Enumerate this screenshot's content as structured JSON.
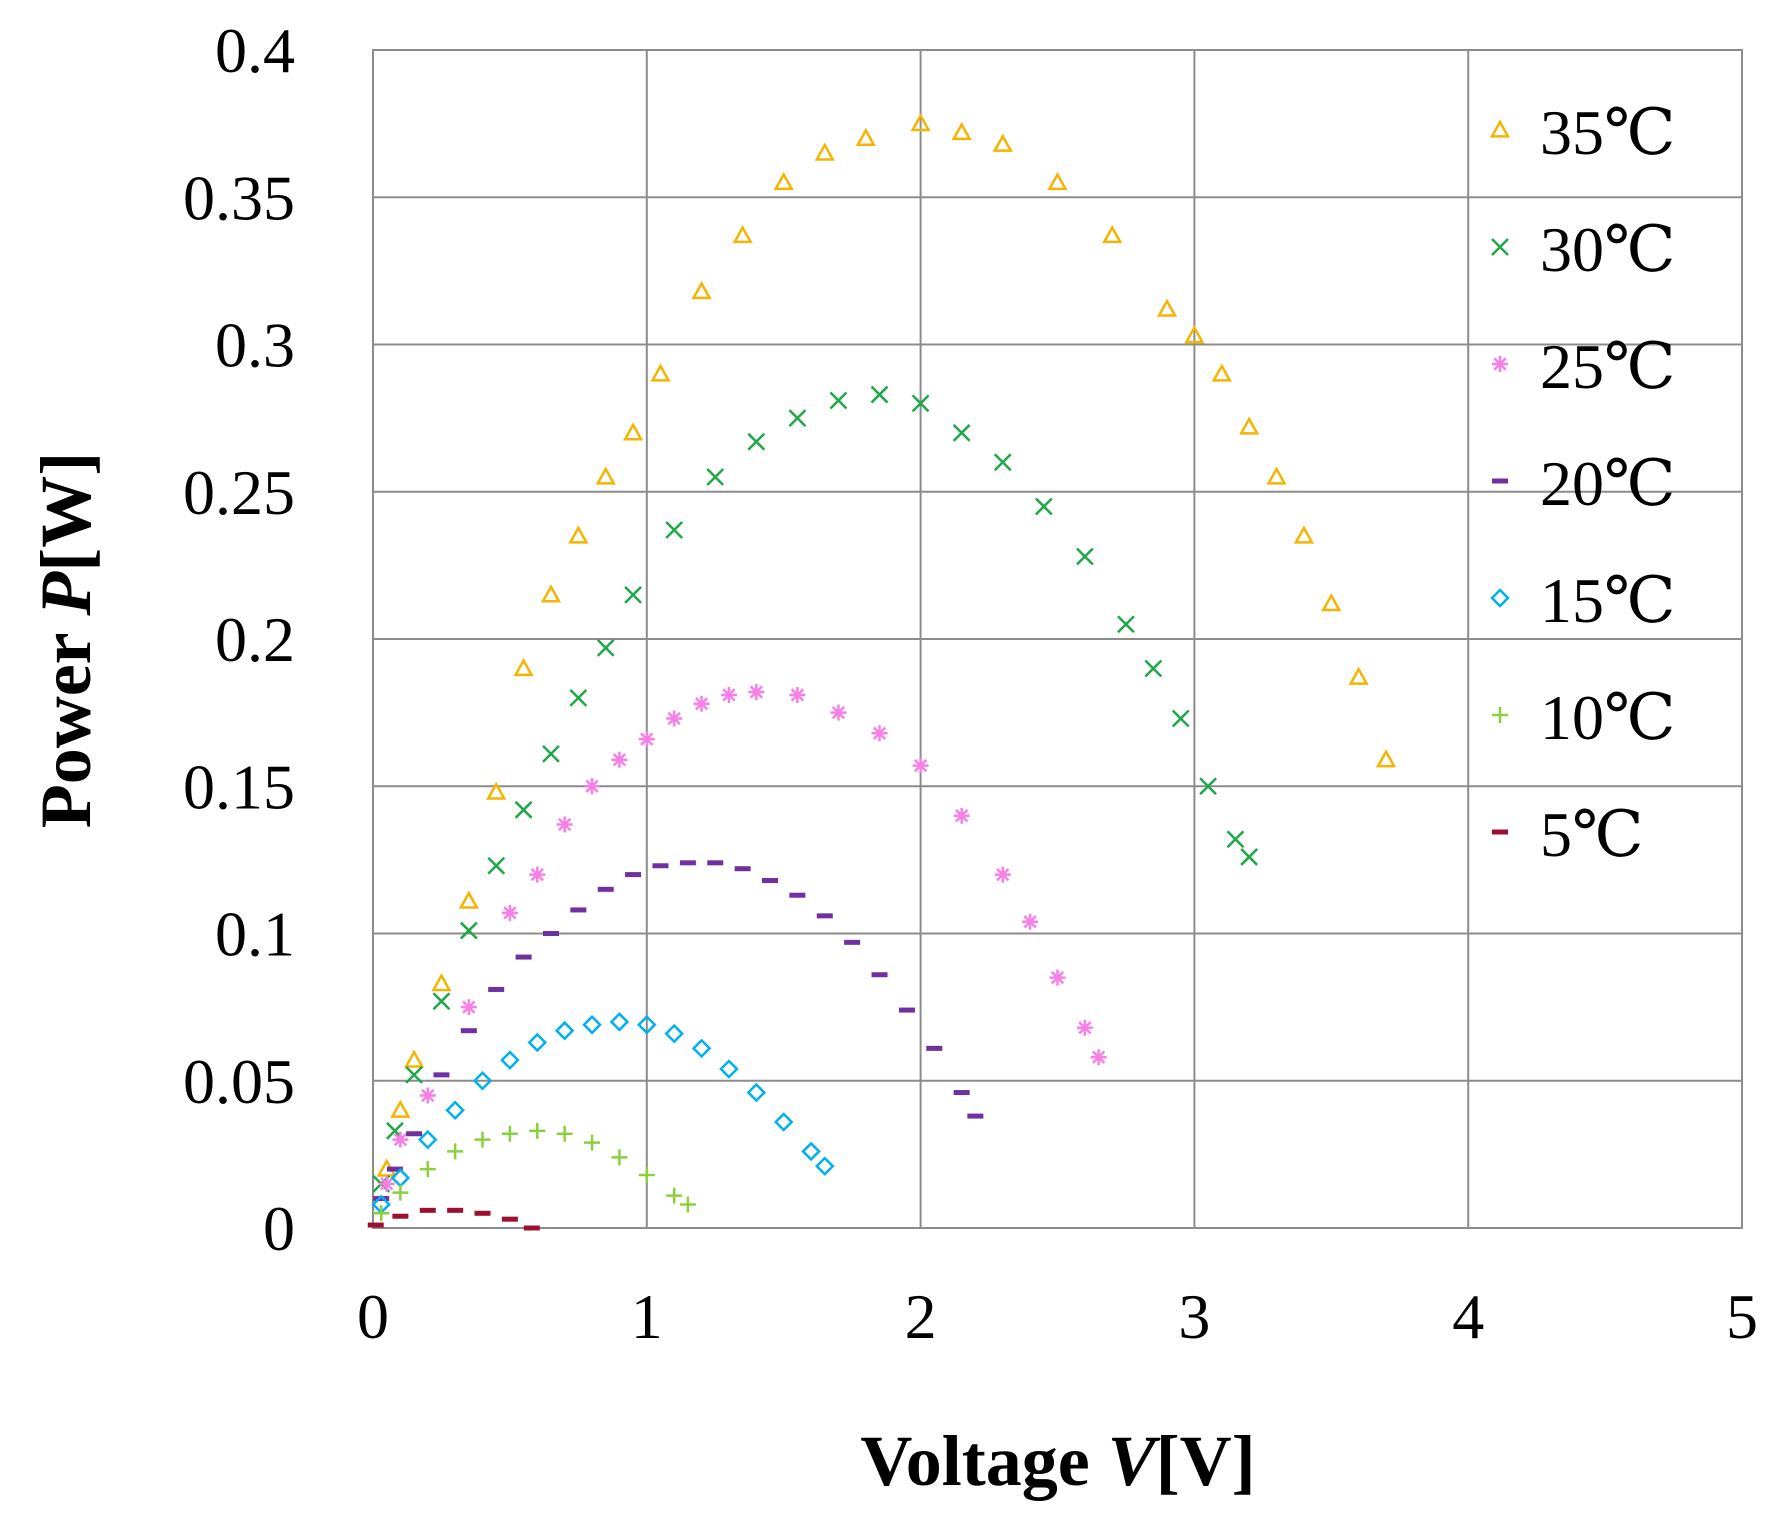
{
  "chart_data": {
    "type": "scatter",
    "title": "",
    "xlabel_prefix": "Voltage ",
    "xlabel_var": "V",
    "xlabel_unit": "[V]",
    "ylabel_prefix": "Power ",
    "ylabel_var": "P",
    "ylabel_unit": "[W]",
    "xlim": [
      0,
      5
    ],
    "ylim": [
      0,
      0.4
    ],
    "x_ticks": [
      0,
      1,
      2,
      3,
      4,
      5
    ],
    "y_ticks": [
      0,
      0.05,
      0.1,
      0.15,
      0.2,
      0.25,
      0.3,
      0.35,
      0.4
    ],
    "x_tick_labels": [
      "0",
      "1",
      "2",
      "3",
      "4",
      "5"
    ],
    "y_tick_labels": [
      "0",
      "0.05",
      "0.1",
      "0.15",
      "0.2",
      "0.25",
      "0.3",
      "0.35",
      "0.4"
    ],
    "grid": true,
    "legend_position": "right",
    "series": [
      {
        "name": "35℃",
        "marker": "triangle",
        "color": "#F5B400",
        "x": [
          0.05,
          0.1,
          0.15,
          0.25,
          0.35,
          0.45,
          0.55,
          0.65,
          0.75,
          0.85,
          0.95,
          1.05,
          1.2,
          1.35,
          1.5,
          1.65,
          1.8,
          2.0,
          2.15,
          2.3,
          2.5,
          2.7,
          2.9,
          3.0,
          3.1,
          3.2,
          3.3,
          3.4,
          3.5,
          3.6,
          3.7
        ],
        "y": [
          0.02,
          0.04,
          0.057,
          0.083,
          0.111,
          0.148,
          0.19,
          0.215,
          0.235,
          0.255,
          0.27,
          0.29,
          0.318,
          0.337,
          0.355,
          0.365,
          0.37,
          0.375,
          0.372,
          0.368,
          0.355,
          0.337,
          0.312,
          0.303,
          0.29,
          0.272,
          0.255,
          0.235,
          0.212,
          0.187,
          0.159
        ]
      },
      {
        "name": "30℃",
        "marker": "x",
        "color": "#1FA848",
        "x": [
          0.03,
          0.08,
          0.15,
          0.25,
          0.35,
          0.45,
          0.55,
          0.65,
          0.75,
          0.85,
          0.95,
          1.1,
          1.25,
          1.4,
          1.55,
          1.7,
          1.85,
          2.0,
          2.15,
          2.3,
          2.45,
          2.6,
          2.75,
          2.85,
          2.95,
          3.05,
          3.15,
          3.2
        ],
        "y": [
          0.015,
          0.033,
          0.052,
          0.077,
          0.101,
          0.123,
          0.142,
          0.161,
          0.18,
          0.197,
          0.215,
          0.237,
          0.255,
          0.267,
          0.275,
          0.281,
          0.283,
          0.28,
          0.27,
          0.26,
          0.245,
          0.228,
          0.205,
          0.19,
          0.173,
          0.15,
          0.132,
          0.126
        ]
      },
      {
        "name": "25℃",
        "marker": "asterisk",
        "color": "#F77FE6",
        "x": [
          0.05,
          0.1,
          0.2,
          0.35,
          0.5,
          0.6,
          0.7,
          0.8,
          0.9,
          1.0,
          1.1,
          1.2,
          1.3,
          1.4,
          1.55,
          1.7,
          1.85,
          2.0,
          2.15,
          2.3,
          2.4,
          2.5,
          2.6,
          2.65
        ],
        "y": [
          0.015,
          0.03,
          0.045,
          0.075,
          0.107,
          0.12,
          0.137,
          0.15,
          0.159,
          0.166,
          0.173,
          0.178,
          0.181,
          0.182,
          0.181,
          0.175,
          0.168,
          0.157,
          0.14,
          0.12,
          0.104,
          0.085,
          0.068,
          0.058
        ]
      },
      {
        "name": "20℃",
        "marker": "dash",
        "color": "#7030A0",
        "x": [
          0.03,
          0.08,
          0.15,
          0.25,
          0.35,
          0.45,
          0.55,
          0.65,
          0.75,
          0.85,
          0.95,
          1.05,
          1.15,
          1.25,
          1.35,
          1.45,
          1.55,
          1.65,
          1.75,
          1.85,
          1.95,
          2.05,
          2.15,
          2.2
        ],
        "y": [
          0.01,
          0.02,
          0.032,
          0.052,
          0.067,
          0.081,
          0.092,
          0.1,
          0.108,
          0.115,
          0.12,
          0.123,
          0.124,
          0.124,
          0.122,
          0.118,
          0.113,
          0.106,
          0.097,
          0.086,
          0.074,
          0.061,
          0.046,
          0.038
        ]
      },
      {
        "name": "15℃",
        "marker": "diamond",
        "color": "#00B0F0",
        "x": [
          0.03,
          0.1,
          0.2,
          0.3,
          0.4,
          0.5,
          0.6,
          0.7,
          0.8,
          0.9,
          1.0,
          1.1,
          1.2,
          1.3,
          1.4,
          1.5,
          1.6,
          1.65
        ],
        "y": [
          0.008,
          0.017,
          0.03,
          0.04,
          0.05,
          0.057,
          0.063,
          0.067,
          0.069,
          0.07,
          0.069,
          0.066,
          0.061,
          0.054,
          0.046,
          0.036,
          0.026,
          0.021
        ]
      },
      {
        "name": "10℃",
        "marker": "plus",
        "color": "#8BD03F",
        "x": [
          0.03,
          0.1,
          0.2,
          0.3,
          0.4,
          0.5,
          0.6,
          0.7,
          0.8,
          0.9,
          1.0,
          1.1,
          1.15
        ],
        "y": [
          0.005,
          0.012,
          0.02,
          0.026,
          0.03,
          0.032,
          0.033,
          0.032,
          0.029,
          0.024,
          0.018,
          0.011,
          0.008
        ]
      },
      {
        "name": "5℃",
        "marker": "dash",
        "color": "#9B1030",
        "x": [
          0.01,
          0.1,
          0.2,
          0.3,
          0.4,
          0.5,
          0.58
        ],
        "y": [
          0.001,
          0.004,
          0.006,
          0.006,
          0.005,
          0.003,
          0.0
        ]
      }
    ]
  }
}
